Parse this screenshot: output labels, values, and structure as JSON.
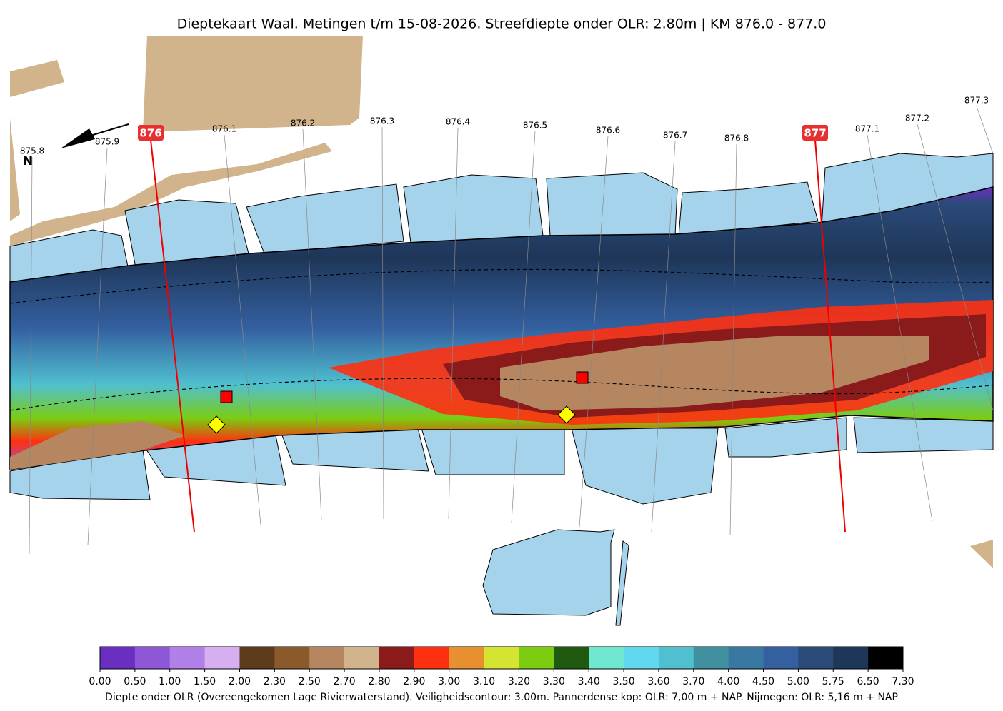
{
  "title": "Dieptekaart Waal. Metingen t/m 15-08-2026. Streefdiepte onder OLR: 2.80m | KM 876.0 - 877.0",
  "north": "N",
  "minor_km_labels": [
    "875.8",
    "875.9",
    "876.1",
    "876.2",
    "876.3",
    "876.4",
    "876.5",
    "876.6",
    "876.7",
    "876.8",
    "877.1",
    "877.2",
    "877.3"
  ],
  "major_km_labels": [
    "876",
    "877"
  ],
  "colorbar": {
    "colors": [
      "#6a2fc0",
      "#8e57d8",
      "#b07fe8",
      "#d5aff0",
      "#5c3a1a",
      "#8b5a2b",
      "#b5865f",
      "#d2b48c",
      "#8b1a1a",
      "#ff3010",
      "#e89030",
      "#d4e430",
      "#7ccc10",
      "#1f5a10",
      "#70e8d0",
      "#60d8f0",
      "#50c0d0",
      "#4090a0",
      "#3878a0",
      "#3460a0",
      "#2a4a78",
      "#1e3658",
      "#000000"
    ],
    "ticks": [
      {
        "value": 0,
        "label": "0.00"
      },
      {
        "value": 0.5,
        "label": "0.50"
      },
      {
        "value": 1,
        "label": "1.00"
      },
      {
        "value": 1.5,
        "label": "1.50"
      },
      {
        "value": 2,
        "label": "2.00"
      },
      {
        "value": 2.3,
        "label": "2.30"
      },
      {
        "value": 2.5,
        "label": "2.50"
      },
      {
        "value": 2.7,
        "label": "2.70"
      },
      {
        "value": 2.8,
        "label": "2.80"
      },
      {
        "value": 2.9,
        "label": "2.90"
      },
      {
        "value": 3,
        "label": "3.00"
      },
      {
        "value": 3.1,
        "label": "3.10"
      },
      {
        "value": 3.2,
        "label": "3.20"
      },
      {
        "value": 3.3,
        "label": "3.30"
      },
      {
        "value": 3.4,
        "label": "3.40"
      },
      {
        "value": 3.5,
        "label": "3.50"
      },
      {
        "value": 3.6,
        "label": "3.60"
      },
      {
        "value": 3.7,
        "label": "3.70"
      },
      {
        "value": 4,
        "label": "4.00"
      },
      {
        "value": 4.5,
        "label": "4.50"
      },
      {
        "value": 5,
        "label": "5.00"
      },
      {
        "value": 5.75,
        "label": "5.75"
      },
      {
        "value": 6.5,
        "label": "6.50"
      },
      {
        "value": 7.3,
        "label": "7.30"
      }
    ],
    "caption": "Diepte onder OLR (Overeengekomen Lage Rivierwaterstand). Veiligheidscontour: 3.00m. Pannerdense kop: OLR: 7,00 m + NAP. Nijmegen: OLR: 5,16 m + NAP"
  }
}
